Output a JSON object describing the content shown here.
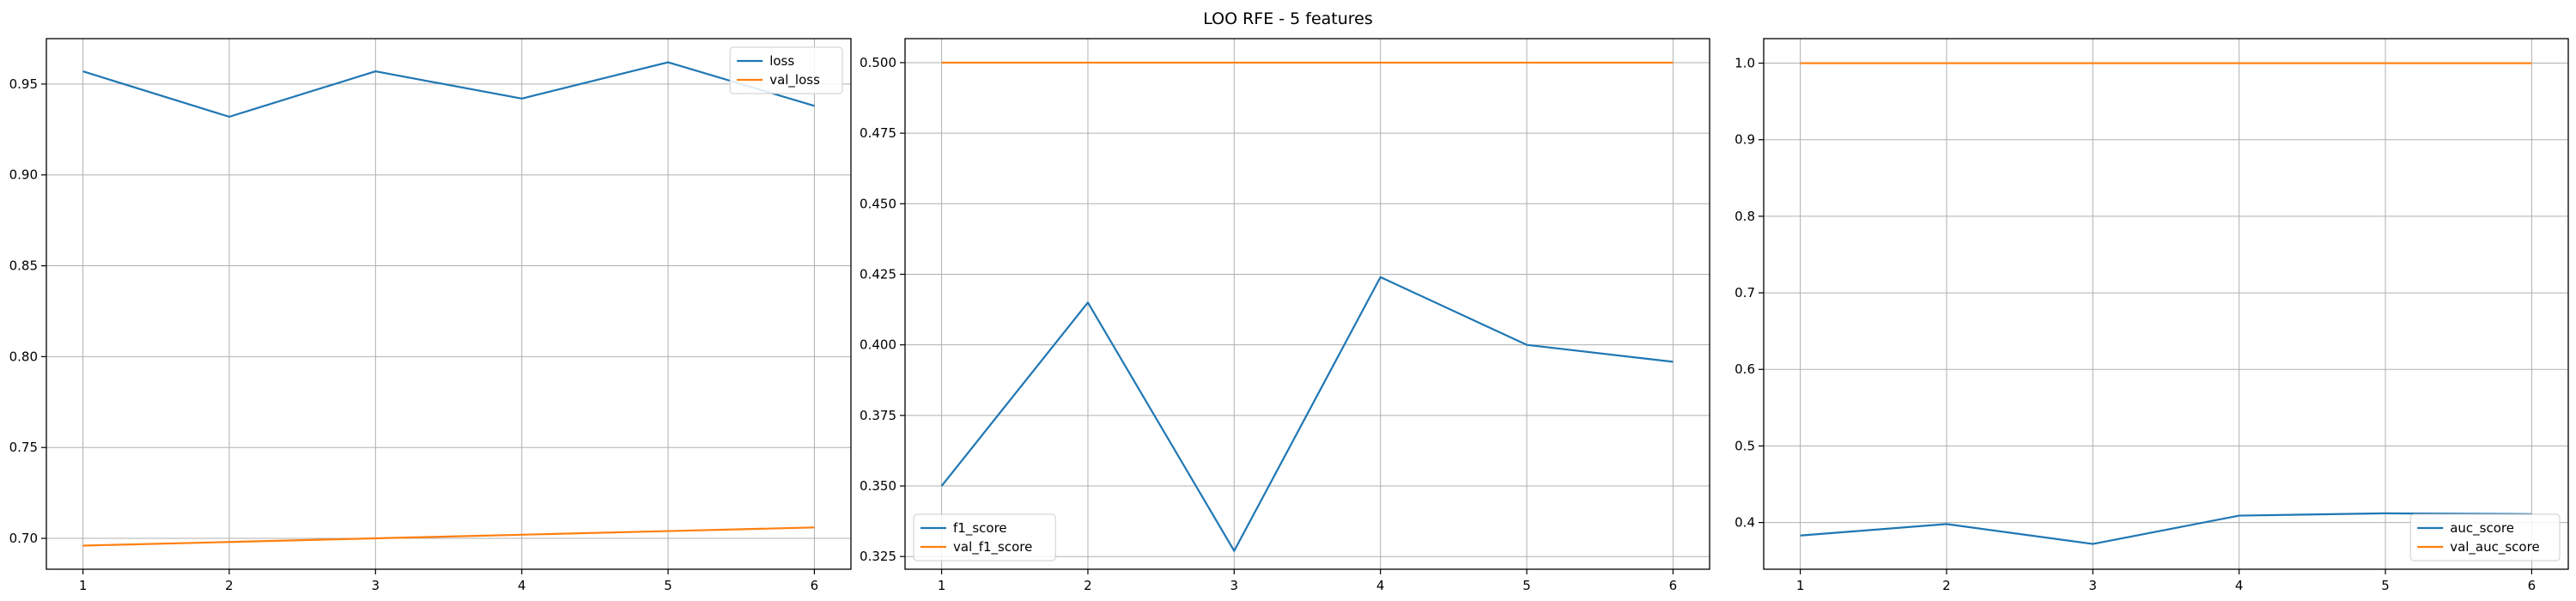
{
  "figure": {
    "title": "LOO RFE - 5 features"
  },
  "colors": {
    "blue": "#1f77b4",
    "orange": "#ff7f0e",
    "grid": "#b0b0b0",
    "axis": "#000000"
  },
  "chart_data": [
    {
      "type": "line",
      "title": "",
      "xlabel": "",
      "ylabel": "",
      "x": [
        1,
        2,
        3,
        4,
        5,
        6
      ],
      "xlim": [
        0.75,
        6.25
      ],
      "ylim": [
        0.683,
        0.975
      ],
      "xticks": [
        1,
        2,
        3,
        4,
        5,
        6
      ],
      "yticks": [
        0.7,
        0.75,
        0.8,
        0.85,
        0.9,
        0.95
      ],
      "ytick_labels": [
        "0.70",
        "0.75",
        "0.80",
        "0.85",
        "0.90",
        "0.95"
      ],
      "grid": true,
      "legend": "upper right",
      "series": [
        {
          "name": "loss",
          "color": "#1f77b4",
          "values": [
            0.957,
            0.932,
            0.957,
            0.942,
            0.962,
            0.938
          ]
        },
        {
          "name": "val_loss",
          "color": "#ff7f0e",
          "values": [
            0.696,
            0.698,
            0.7,
            0.702,
            0.704,
            0.706
          ]
        }
      ]
    },
    {
      "type": "line",
      "title": "",
      "xlabel": "",
      "ylabel": "",
      "x": [
        1,
        2,
        3,
        4,
        5,
        6
      ],
      "xlim": [
        0.75,
        6.25
      ],
      "ylim": [
        0.3205,
        0.5085
      ],
      "xticks": [
        1,
        2,
        3,
        4,
        5,
        6
      ],
      "yticks": [
        0.325,
        0.35,
        0.375,
        0.4,
        0.425,
        0.45,
        0.475,
        0.5
      ],
      "ytick_labels": [
        "0.325",
        "0.350",
        "0.375",
        "0.400",
        "0.425",
        "0.450",
        "0.475",
        "0.500"
      ],
      "grid": true,
      "legend": "lower left",
      "series": [
        {
          "name": "f1_score",
          "color": "#1f77b4",
          "values": [
            0.35,
            0.415,
            0.327,
            0.424,
            0.4,
            0.394
          ]
        },
        {
          "name": "val_f1_score",
          "color": "#ff7f0e",
          "values": [
            0.5,
            0.5,
            0.5,
            0.5,
            0.5,
            0.5
          ]
        }
      ]
    },
    {
      "type": "line",
      "title": "",
      "xlabel": "",
      "ylabel": "",
      "x": [
        1,
        2,
        3,
        4,
        5,
        6
      ],
      "xlim": [
        0.75,
        6.25
      ],
      "ylim": [
        0.339,
        1.032
      ],
      "xticks": [
        1,
        2,
        3,
        4,
        5,
        6
      ],
      "yticks": [
        0.4,
        0.5,
        0.6,
        0.7,
        0.8,
        0.9,
        1.0
      ],
      "ytick_labels": [
        "0.4",
        "0.5",
        "0.6",
        "0.7",
        "0.8",
        "0.9",
        "1.0"
      ],
      "grid": true,
      "legend": "lower right",
      "series": [
        {
          "name": "auc_score",
          "color": "#1f77b4",
          "values": [
            0.383,
            0.398,
            0.372,
            0.409,
            0.412,
            0.411
          ]
        },
        {
          "name": "val_auc_score",
          "color": "#ff7f0e",
          "values": [
            1.0,
            1.0,
            1.0,
            1.0,
            1.0,
            1.0
          ]
        }
      ]
    }
  ]
}
